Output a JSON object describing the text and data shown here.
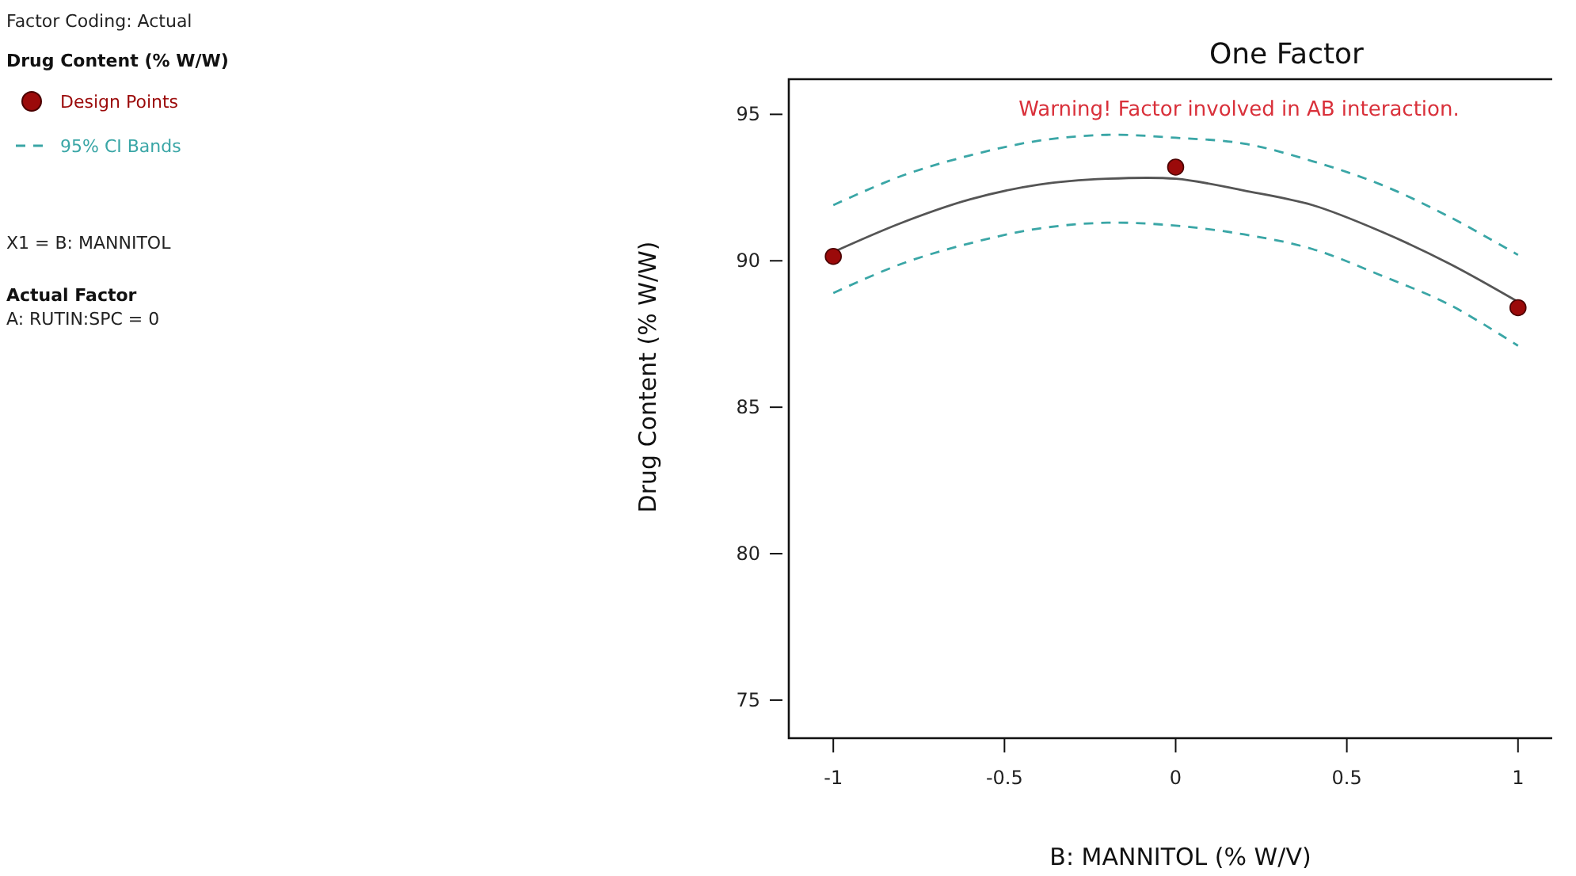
{
  "chart_data": {
    "type": "line",
    "title": "One Factor",
    "xlabel": "B: MANNITOL (% W/V)",
    "ylabel": "Drug Content (% W/W)",
    "legend_title": "Drug Content (% W/W)",
    "legend": "left",
    "annotations": [
      "Warning! Factor involved in AB interaction.",
      "Factor Coding: Actual",
      "X1 = B: MANNITOL",
      "Actual Factor",
      "A: RUTIN:SPC = 0"
    ],
    "xlim": [
      -1.13,
      1.1
    ],
    "xticks": [
      -1,
      -0.5,
      0,
      0.5,
      1
    ],
    "ylim": [
      73.7,
      96.2
    ],
    "yticks": [
      75,
      80,
      85,
      90,
      95
    ],
    "grid": false,
    "series": [
      {
        "name": "Design Points",
        "type": "scatter",
        "marker": "circle",
        "color": "#9b0a0a",
        "x": [
          -1,
          0,
          1
        ],
        "values": [
          90.15,
          93.2,
          88.4
        ]
      },
      {
        "color": "#555555",
        "line_style": "solid",
        "x": [
          -1,
          -0.8,
          -0.6,
          -0.4,
          -0.2,
          0,
          0.2,
          0.4,
          0.6,
          0.8,
          1
        ],
        "values": [
          90.3,
          91.3,
          92.1,
          92.6,
          92.8,
          92.8,
          92.4,
          91.9,
          91.0,
          89.9,
          88.6
        ]
      },
      {
        "name": "95% CI Bands",
        "type": "line",
        "color": "#3aa6a6",
        "line_style": "dashed",
        "x": [
          -1,
          -0.8,
          -0.6,
          -0.4,
          -0.2,
          0,
          0.2,
          0.4,
          0.6,
          0.8,
          1
        ],
        "values": [
          91.9,
          92.9,
          93.6,
          94.1,
          94.3,
          94.2,
          94.0,
          93.4,
          92.6,
          91.5,
          90.2
        ]
      },
      {
        "type": "line",
        "color": "#3aa6a6",
        "line_style": "dashed",
        "x": [
          -1,
          -0.8,
          -0.6,
          -0.4,
          -0.2,
          0,
          0.2,
          0.4,
          0.6,
          0.8,
          1
        ],
        "values": [
          88.9,
          89.9,
          90.6,
          91.1,
          91.3,
          91.2,
          90.9,
          90.4,
          89.5,
          88.5,
          87.1
        ]
      }
    ]
  }
}
